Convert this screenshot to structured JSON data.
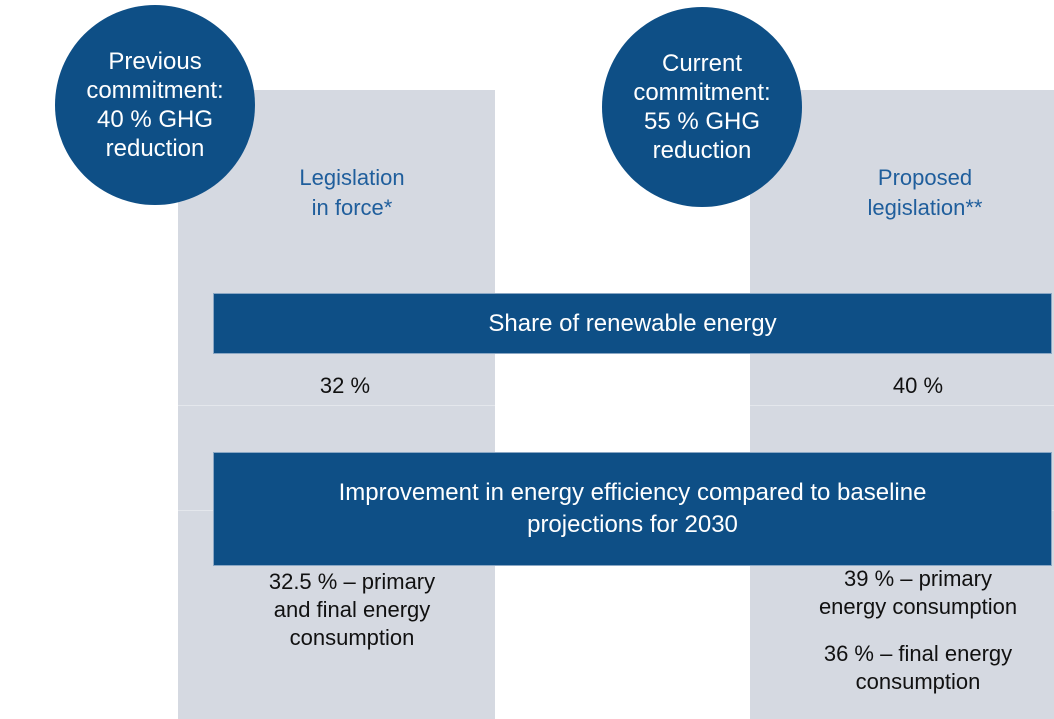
{
  "left": {
    "circle": [
      "Previous",
      "commitment:",
      "40 % GHG",
      "reduction"
    ],
    "column": [
      "Legislation",
      "in force*"
    ],
    "renewable": "32 %",
    "efficiency": [
      "32.5 % – primary",
      "and final energy",
      "consumption"
    ]
  },
  "right": {
    "circle": [
      "Current",
      "commitment:",
      "55 % GHG",
      "reduction"
    ],
    "column": [
      "Proposed",
      "legislation**"
    ],
    "renewable": "40 %",
    "efficiency_primary": [
      "39 % – primary",
      "energy consumption"
    ],
    "efficiency_final": [
      "36 % – final energy",
      "consumption"
    ]
  },
  "bars": {
    "renewable": [
      "Share of renewable energy"
    ],
    "efficiency": [
      "Improvement in energy efficiency compared to baseline",
      "projections for 2030"
    ]
  }
}
